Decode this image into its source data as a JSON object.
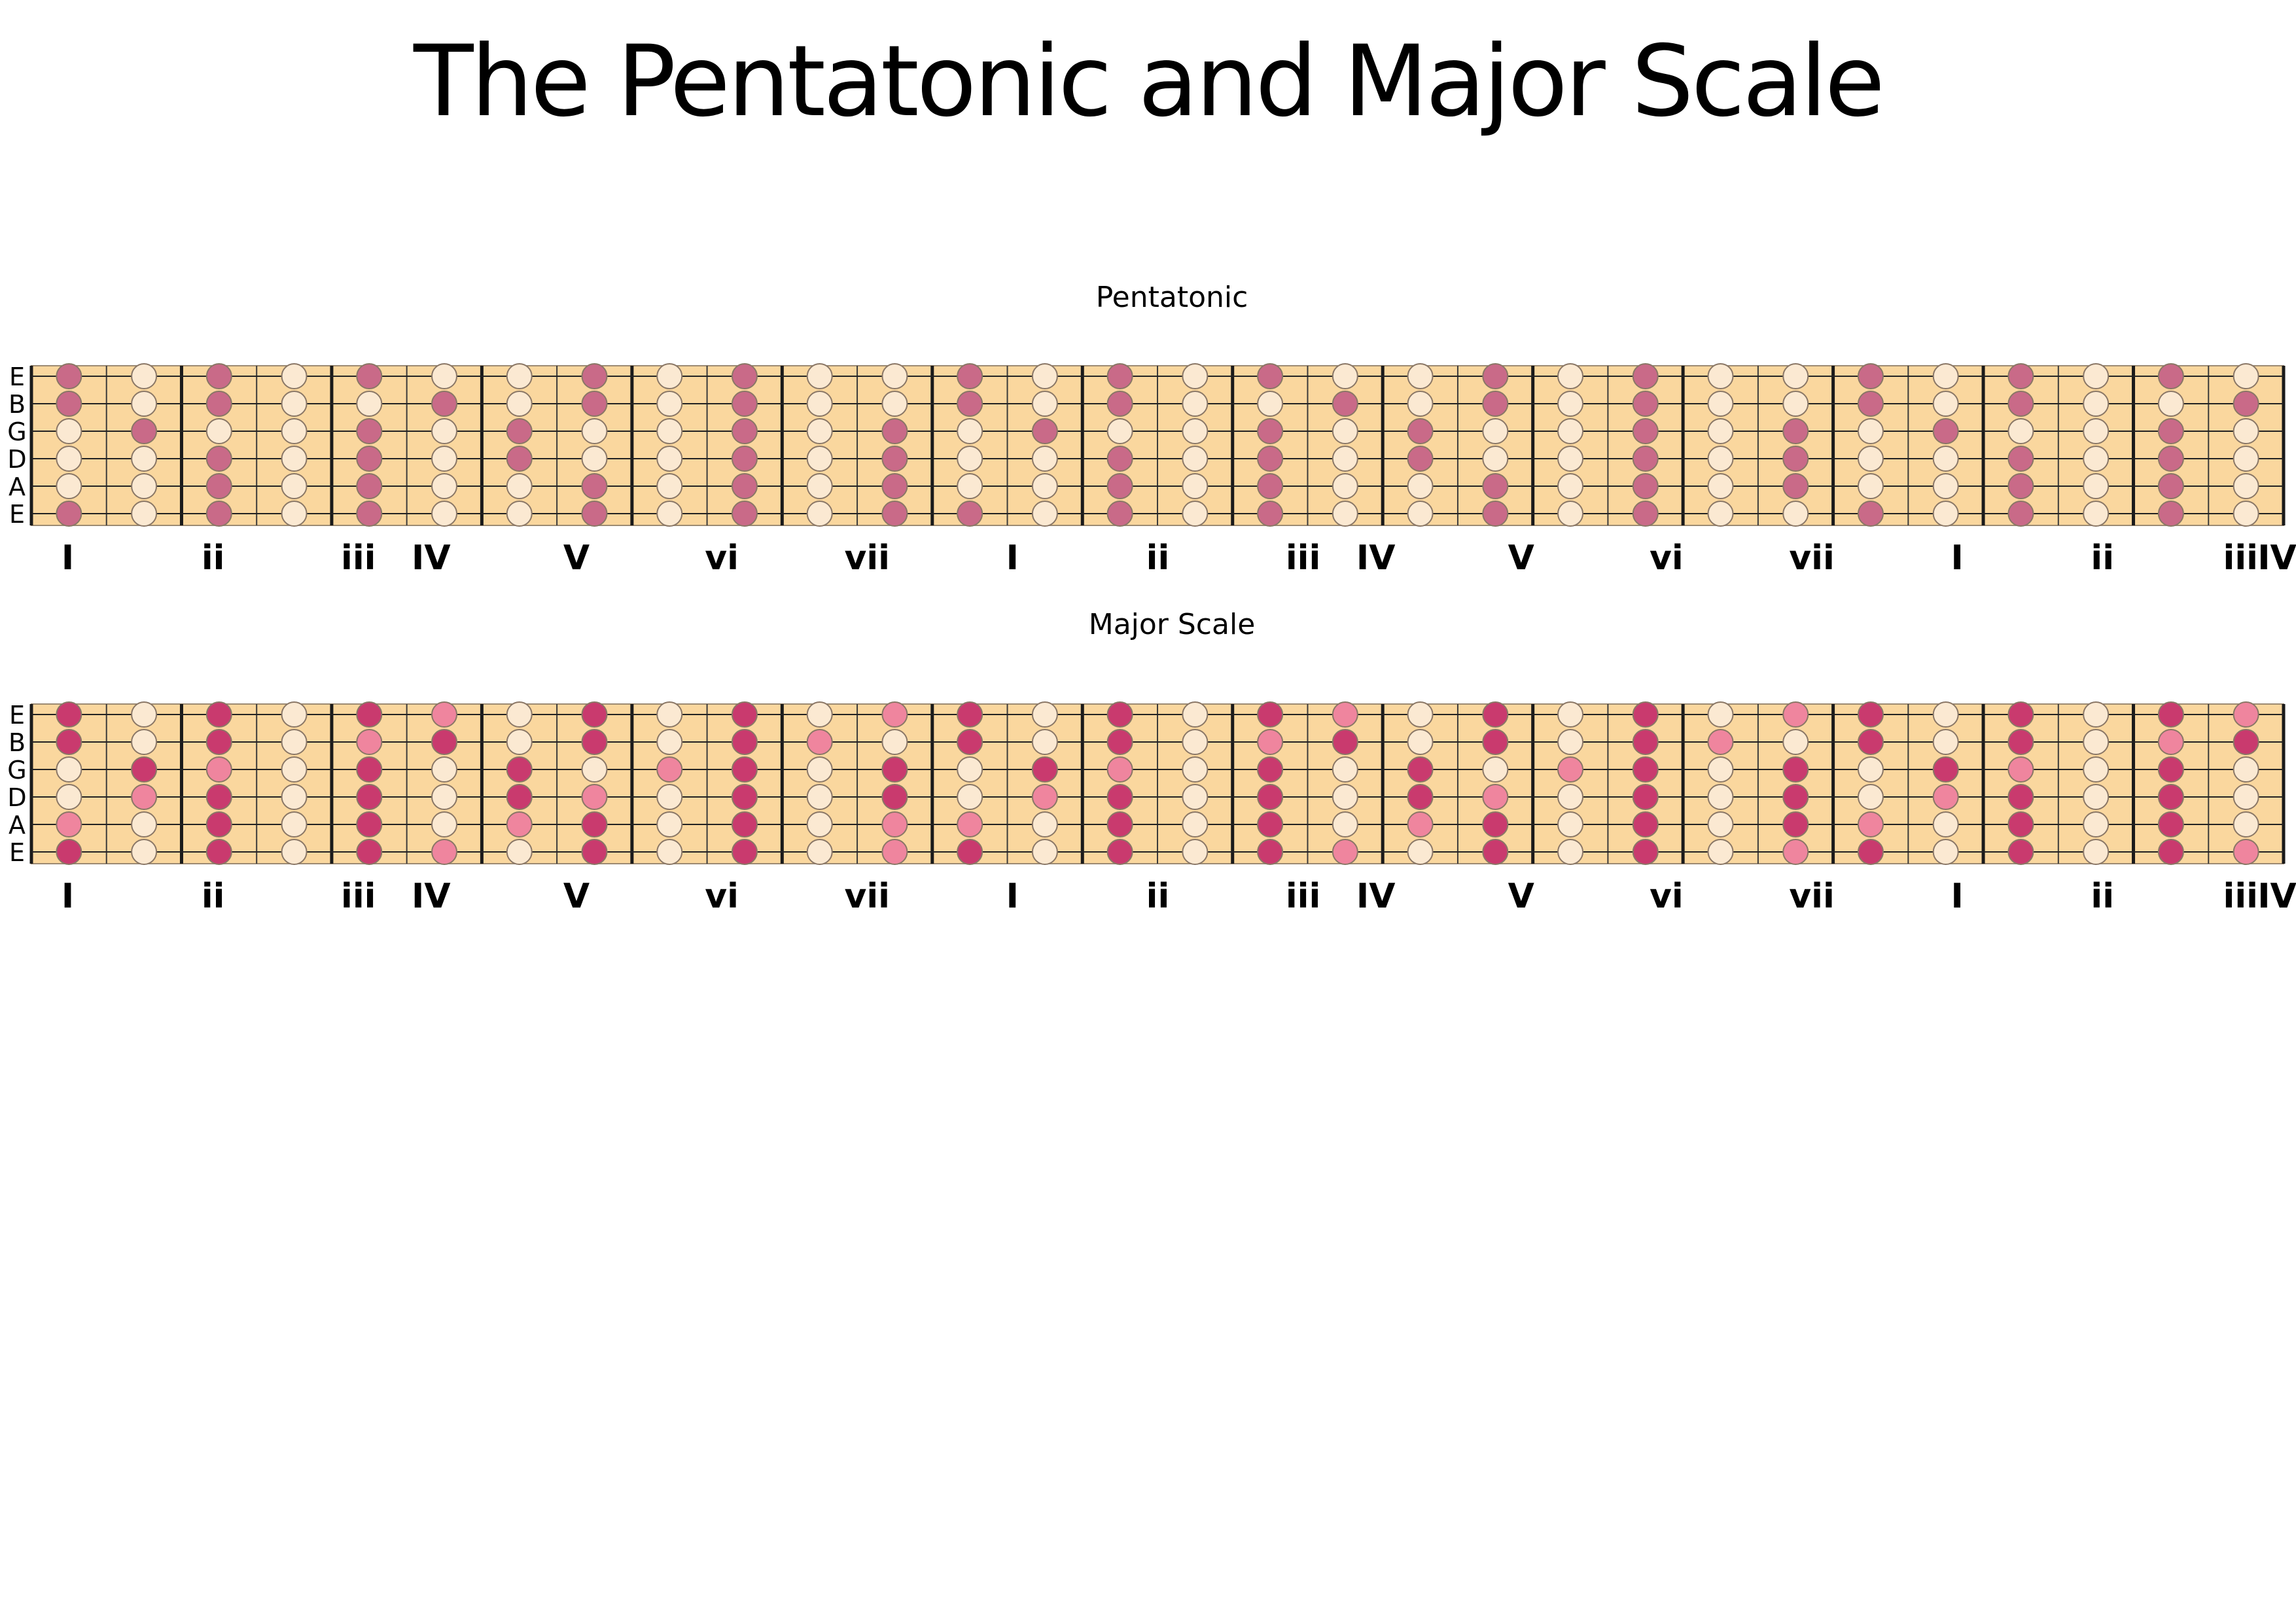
{
  "title": "The Pentatonic and Major Scale",
  "palette": {
    "board": "#fad79e",
    "empty": "#fbe9d2",
    "pentatonic_dot": "#c96a88",
    "major_root_dot": "#c93a6e",
    "major_other_dot": "#ef859e",
    "outline": "#8a7766"
  },
  "strings": [
    "E",
    "B",
    "G",
    "D",
    "A",
    "E"
  ],
  "degree_labels": [
    "I",
    "ii",
    "iii",
    "IV",
    "V",
    "vi",
    "vii",
    "I",
    "ii",
    "iii",
    "IV",
    "V",
    "vi",
    "vii",
    "I",
    "ii",
    "iii",
    "IV"
  ],
  "pentatonic": {
    "title": "Pentatonic",
    "frets": [
      [
        1,
        1,
        0,
        0,
        0,
        1
      ],
      [
        0,
        0,
        1,
        0,
        0,
        0
      ],
      [
        1,
        1,
        0,
        1,
        1,
        1
      ],
      [
        0,
        0,
        0,
        0,
        0,
        0
      ],
      [
        1,
        0,
        1,
        1,
        1,
        1
      ],
      [
        0,
        1,
        0,
        0,
        0,
        0
      ],
      [
        0,
        0,
        1,
        1,
        0,
        0
      ],
      [
        1,
        1,
        0,
        0,
        1,
        1
      ],
      [
        0,
        0,
        0,
        0,
        0,
        0
      ],
      [
        1,
        1,
        1,
        1,
        1,
        1
      ],
      [
        0,
        0,
        0,
        0,
        0,
        0
      ],
      [
        0,
        0,
        1,
        1,
        1,
        1
      ],
      [
        1,
        1,
        0,
        0,
        0,
        1
      ],
      [
        0,
        0,
        1,
        0,
        0,
        0
      ],
      [
        1,
        1,
        0,
        1,
        1,
        1
      ],
      [
        0,
        0,
        0,
        0,
        0,
        0
      ],
      [
        1,
        0,
        1,
        1,
        1,
        1
      ],
      [
        0,
        1,
        0,
        0,
        0,
        0
      ],
      [
        0,
        0,
        1,
        1,
        0,
        0
      ],
      [
        1,
        1,
        0,
        0,
        1,
        1
      ],
      [
        0,
        0,
        0,
        0,
        0,
        0
      ],
      [
        1,
        1,
        1,
        1,
        1,
        1
      ],
      [
        0,
        0,
        0,
        0,
        0,
        0
      ],
      [
        0,
        0,
        1,
        1,
        1,
        0
      ],
      [
        1,
        1,
        0,
        0,
        0,
        1
      ],
      [
        0,
        0,
        1,
        0,
        0,
        0
      ],
      [
        1,
        1,
        0,
        1,
        1,
        1
      ],
      [
        0,
        0,
        0,
        0,
        0,
        0
      ],
      [
        1,
        0,
        1,
        1,
        1,
        1
      ],
      [
        0,
        1,
        0,
        0,
        0,
        0
      ]
    ]
  },
  "major": {
    "title": "Major Scale",
    "frets": [
      [
        1,
        1,
        0,
        0,
        2,
        1
      ],
      [
        0,
        0,
        1,
        2,
        0,
        0
      ],
      [
        1,
        1,
        2,
        1,
        1,
        1
      ],
      [
        0,
        0,
        0,
        0,
        0,
        0
      ],
      [
        1,
        2,
        1,
        1,
        1,
        1
      ],
      [
        2,
        1,
        0,
        0,
        0,
        2
      ],
      [
        0,
        0,
        1,
        1,
        2,
        0
      ],
      [
        1,
        1,
        0,
        2,
        1,
        1
      ],
      [
        0,
        0,
        2,
        0,
        0,
        0
      ],
      [
        1,
        1,
        1,
        1,
        1,
        1
      ],
      [
        0,
        2,
        0,
        0,
        0,
        0
      ],
      [
        2,
        0,
        1,
        1,
        2,
        2
      ],
      [
        1,
        1,
        0,
        0,
        2,
        1
      ],
      [
        0,
        0,
        1,
        2,
        0,
        0
      ],
      [
        1,
        1,
        2,
        1,
        1,
        1
      ],
      [
        0,
        0,
        0,
        0,
        0,
        0
      ],
      [
        1,
        2,
        1,
        1,
        1,
        1
      ],
      [
        2,
        1,
        0,
        0,
        0,
        2
      ],
      [
        0,
        0,
        1,
        1,
        2,
        0
      ],
      [
        1,
        1,
        0,
        2,
        1,
        1
      ],
      [
        0,
        0,
        2,
        0,
        0,
        0
      ],
      [
        1,
        1,
        1,
        1,
        1,
        1
      ],
      [
        0,
        2,
        0,
        0,
        0,
        0
      ],
      [
        2,
        0,
        1,
        1,
        1,
        2
      ],
      [
        1,
        1,
        0,
        0,
        2,
        1
      ],
      [
        0,
        0,
        1,
        2,
        0,
        0
      ],
      [
        1,
        1,
        2,
        1,
        1,
        1
      ],
      [
        0,
        0,
        0,
        0,
        0,
        0
      ],
      [
        1,
        2,
        1,
        1,
        1,
        1
      ],
      [
        2,
        1,
        0,
        0,
        0,
        2
      ]
    ]
  }
}
